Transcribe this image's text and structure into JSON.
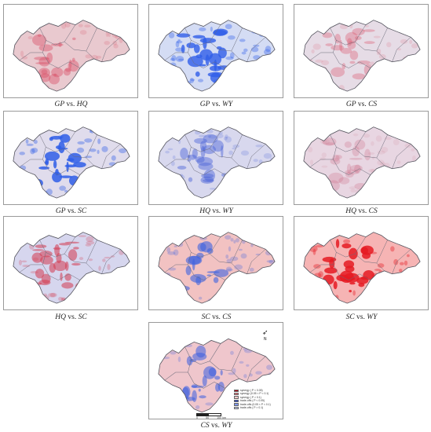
{
  "panels": [
    {
      "a": "GP",
      "b": "HQ",
      "vs": "vs.",
      "fill": "#e9c9cf",
      "accent": "#d9546a",
      "accent_opacity": 0.45
    },
    {
      "a": "GP",
      "b": "WY",
      "vs": "vs.",
      "fill": "#d4dcf4",
      "accent": "#2f5ee8",
      "accent_opacity": 0.8
    },
    {
      "a": "GP",
      "b": "CS",
      "vs": "vs.",
      "fill": "#e6dce6",
      "accent": "#d9546a",
      "accent_opacity": 0.35
    },
    {
      "a": "GP",
      "b": "SC",
      "vs": "vs.",
      "fill": "#e0dcec",
      "accent": "#2f5ee8",
      "accent_opacity": 0.85
    },
    {
      "a": "HQ",
      "b": "WY",
      "vs": "vs.",
      "fill": "#d8d8ee",
      "accent": "#4b63d8",
      "accent_opacity": 0.45
    },
    {
      "a": "HQ",
      "b": "CS",
      "vs": "vs.",
      "fill": "#e8d6e2",
      "accent": "#c9607a",
      "accent_opacity": 0.25
    },
    {
      "a": "HQ",
      "b": "SC",
      "vs": "vs.",
      "fill": "#d6d6ee",
      "accent": "#d33b50",
      "accent_opacity": 0.55
    },
    {
      "a": "SC",
      "b": "CS",
      "vs": "vs.",
      "fill": "#f2c2c2",
      "accent": "#3e63e0",
      "accent_opacity": 0.6
    },
    {
      "a": "SC",
      "b": "WY",
      "vs": "vs.",
      "fill": "#f6b4b4",
      "accent": "#e51a22",
      "accent_opacity": 0.85
    },
    {
      "a": "CS",
      "b": "WY",
      "vs": "vs.",
      "fill": "#efc6cc",
      "accent": "#3b5fe0",
      "accent_opacity": 0.55
    }
  ],
  "legend": [
    {
      "label": "synergy ( P < 0.05)",
      "color": "#b3000b"
    },
    {
      "label": "synergy (0.05 < P < 0.1)",
      "color": "#ef6b73"
    },
    {
      "label": "synergy ( P > 0.1)",
      "color": "#f7c8c8"
    },
    {
      "label": "trade-offs ( P < 0.05)",
      "color": "#1d3fd8"
    },
    {
      "label": "trade-offs (0.05 < P < 0.1)",
      "color": "#7f98ee"
    },
    {
      "label": "trade-offs ( P > 0.1)",
      "color": "#c8d2f6"
    }
  ],
  "scale": {
    "ticks": [
      "0",
      "50",
      "100"
    ],
    "unit": "km"
  },
  "north": "N"
}
